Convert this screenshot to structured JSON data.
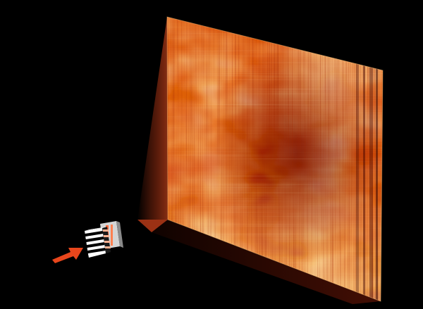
{
  "scene": {
    "background_color": "#000000",
    "projection_cone_color": "#c8431c",
    "arrow_color": "#e8461c",
    "heatmap_palette": [
      "#4a0000",
      "#8a0a00",
      "#c42a00",
      "#e85a10",
      "#f89a30",
      "#fcd070",
      "#fff4c8"
    ],
    "heatmap_description_tags": [
      "noisy-texture",
      "vertical-streaks",
      "horizontal-streaks"
    ],
    "icons": {
      "projection_screen": "heatmap-screen-icon",
      "source_device": "striped-block-device-icon",
      "input_arrow": "arrow-right-icon"
    }
  }
}
